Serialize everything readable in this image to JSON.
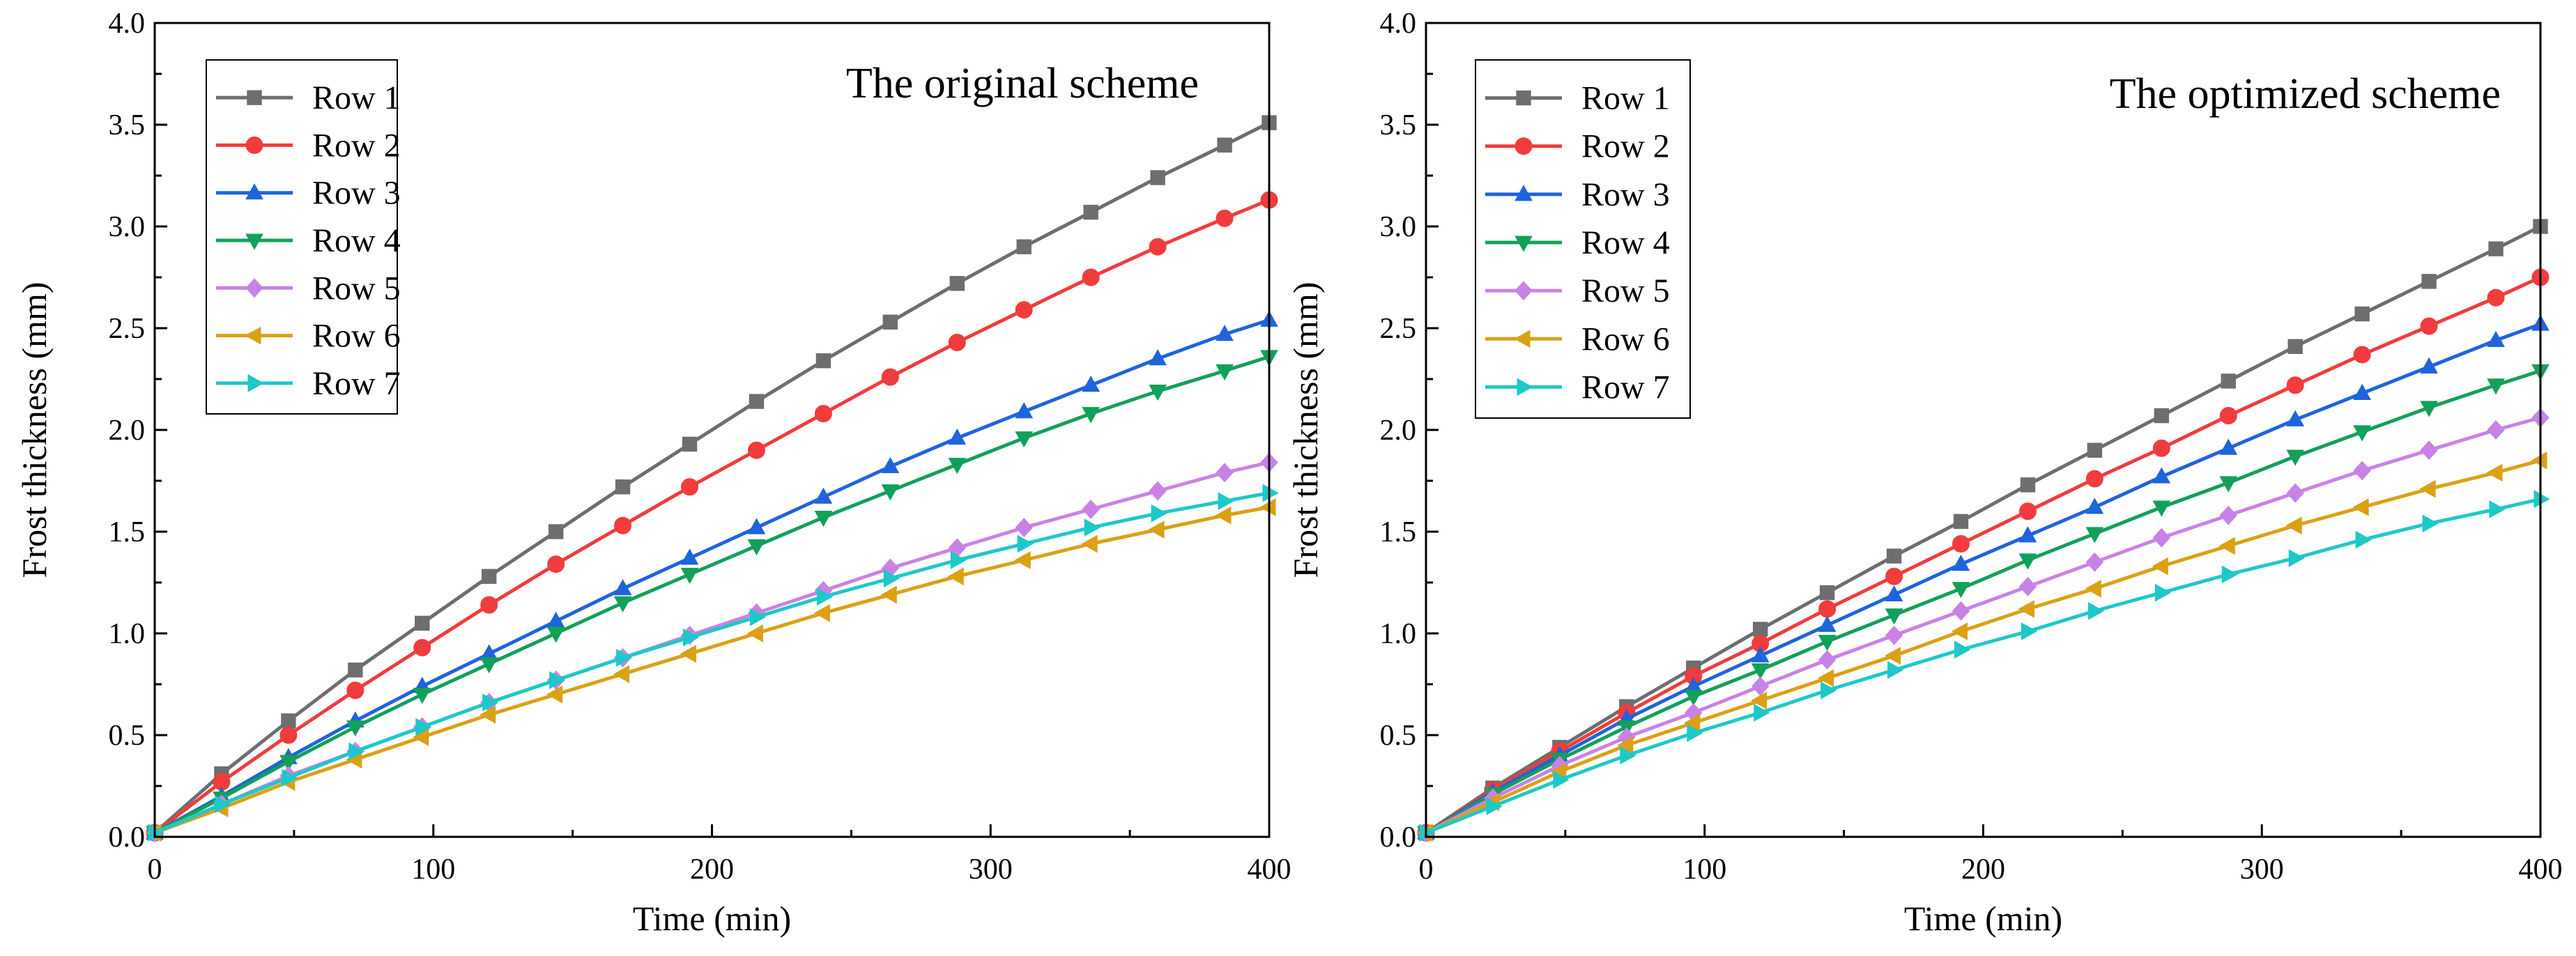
{
  "chart_data": [
    {
      "type": "line",
      "title": "The original scheme",
      "xlabel": "Time (min)",
      "ylabel": "Frost thickness (mm)",
      "xlim": [
        0,
        400
      ],
      "ylim": [
        0,
        4.0
      ],
      "xticks": [
        "0",
        "100",
        "200",
        "300",
        "400"
      ],
      "yticks": [
        "0.0",
        "0.5",
        "1.0",
        "1.5",
        "2.0",
        "2.5",
        "3.0",
        "3.5",
        "4.0"
      ],
      "x": [
        0,
        24,
        48,
        72,
        96,
        120,
        144,
        168,
        192,
        216,
        240,
        264,
        288,
        312,
        336,
        360,
        384,
        400
      ],
      "legend_position": "top-left",
      "series": [
        {
          "name": "Row 1",
          "color": "#6e6e6e",
          "marker": "square",
          "values": [
            0.02,
            0.31,
            0.57,
            0.82,
            1.05,
            1.28,
            1.5,
            1.72,
            1.93,
            2.14,
            2.34,
            2.53,
            2.72,
            2.9,
            3.07,
            3.24,
            3.4,
            3.51
          ]
        },
        {
          "name": "Row 2",
          "color": "#f03c3c",
          "marker": "circle",
          "values": [
            0.02,
            0.27,
            0.5,
            0.72,
            0.93,
            1.14,
            1.34,
            1.53,
            1.72,
            1.9,
            2.08,
            2.26,
            2.43,
            2.59,
            2.75,
            2.9,
            3.04,
            3.13
          ]
        },
        {
          "name": "Row 3",
          "color": "#1e64dc",
          "marker": "triangle-up",
          "values": [
            0.02,
            0.2,
            0.39,
            0.57,
            0.74,
            0.9,
            1.06,
            1.22,
            1.37,
            1.52,
            1.67,
            1.82,
            1.96,
            2.09,
            2.22,
            2.35,
            2.47,
            2.54
          ]
        },
        {
          "name": "Row 4",
          "color": "#12a05a",
          "marker": "triangle-down",
          "values": [
            0.02,
            0.19,
            0.37,
            0.54,
            0.7,
            0.85,
            1.0,
            1.15,
            1.29,
            1.43,
            1.57,
            1.7,
            1.83,
            1.96,
            2.08,
            2.19,
            2.29,
            2.36
          ]
        },
        {
          "name": "Row 5",
          "color": "#c882e6",
          "marker": "diamond",
          "values": [
            0.02,
            0.16,
            0.3,
            0.42,
            0.54,
            0.66,
            0.77,
            0.88,
            0.99,
            1.1,
            1.21,
            1.32,
            1.42,
            1.52,
            1.61,
            1.7,
            1.79,
            1.84
          ]
        },
        {
          "name": "Row 6",
          "color": "#dca014",
          "marker": "triangle-left",
          "values": [
            0.02,
            0.14,
            0.27,
            0.38,
            0.49,
            0.6,
            0.7,
            0.8,
            0.9,
            1.0,
            1.1,
            1.19,
            1.28,
            1.36,
            1.44,
            1.51,
            1.58,
            1.62
          ]
        },
        {
          "name": "Row 7",
          "color": "#1ec8c8",
          "marker": "triangle-right",
          "values": [
            0.02,
            0.16,
            0.29,
            0.42,
            0.54,
            0.66,
            0.77,
            0.88,
            0.98,
            1.08,
            1.18,
            1.27,
            1.36,
            1.44,
            1.52,
            1.59,
            1.65,
            1.69
          ]
        }
      ]
    },
    {
      "type": "line",
      "title": "The optimized scheme",
      "xlabel": "Time (min)",
      "ylabel": "Frost thickness (mm)",
      "xlim": [
        0,
        400
      ],
      "ylim": [
        0,
        4.0
      ],
      "xticks": [
        "0",
        "100",
        "200",
        "300",
        "400"
      ],
      "yticks": [
        "0.0",
        "0.5",
        "1.0",
        "1.5",
        "2.0",
        "2.5",
        "3.0",
        "3.5",
        "4.0"
      ],
      "x": [
        0,
        24,
        48,
        72,
        96,
        120,
        144,
        168,
        192,
        216,
        240,
        264,
        288,
        312,
        336,
        360,
        384,
        400
      ],
      "legend_position": "top-left",
      "series": [
        {
          "name": "Row 1",
          "color": "#6e6e6e",
          "marker": "square",
          "values": [
            0.02,
            0.24,
            0.44,
            0.64,
            0.83,
            1.02,
            1.2,
            1.38,
            1.55,
            1.73,
            1.9,
            2.07,
            2.24,
            2.41,
            2.57,
            2.73,
            2.89,
            3.0
          ]
        },
        {
          "name": "Row 2",
          "color": "#f03c3c",
          "marker": "circle",
          "values": [
            0.02,
            0.23,
            0.42,
            0.61,
            0.79,
            0.95,
            1.12,
            1.28,
            1.44,
            1.6,
            1.76,
            1.91,
            2.07,
            2.22,
            2.37,
            2.51,
            2.65,
            2.75
          ]
        },
        {
          "name": "Row 3",
          "color": "#1e64dc",
          "marker": "triangle-up",
          "values": [
            0.02,
            0.22,
            0.4,
            0.58,
            0.74,
            0.89,
            1.04,
            1.19,
            1.34,
            1.48,
            1.62,
            1.77,
            1.91,
            2.05,
            2.18,
            2.31,
            2.44,
            2.52
          ]
        },
        {
          "name": "Row 4",
          "color": "#12a05a",
          "marker": "triangle-down",
          "values": [
            0.02,
            0.21,
            0.38,
            0.54,
            0.69,
            0.82,
            0.96,
            1.09,
            1.22,
            1.36,
            1.49,
            1.62,
            1.74,
            1.87,
            1.99,
            2.11,
            2.22,
            2.29
          ]
        },
        {
          "name": "Row 5",
          "color": "#c882e6",
          "marker": "diamond",
          "values": [
            0.02,
            0.19,
            0.35,
            0.49,
            0.61,
            0.74,
            0.87,
            0.99,
            1.11,
            1.23,
            1.35,
            1.47,
            1.58,
            1.69,
            1.8,
            1.9,
            2.0,
            2.06
          ]
        },
        {
          "name": "Row 6",
          "color": "#dca014",
          "marker": "triangle-left",
          "values": [
            0.02,
            0.17,
            0.32,
            0.45,
            0.56,
            0.67,
            0.78,
            0.89,
            1.01,
            1.12,
            1.22,
            1.33,
            1.43,
            1.53,
            1.62,
            1.71,
            1.79,
            1.85
          ]
        },
        {
          "name": "Row 7",
          "color": "#1ec8c8",
          "marker": "triangle-right",
          "values": [
            0.02,
            0.15,
            0.28,
            0.4,
            0.51,
            0.61,
            0.72,
            0.82,
            0.92,
            1.01,
            1.11,
            1.2,
            1.29,
            1.37,
            1.46,
            1.54,
            1.61,
            1.66
          ]
        }
      ]
    }
  ]
}
